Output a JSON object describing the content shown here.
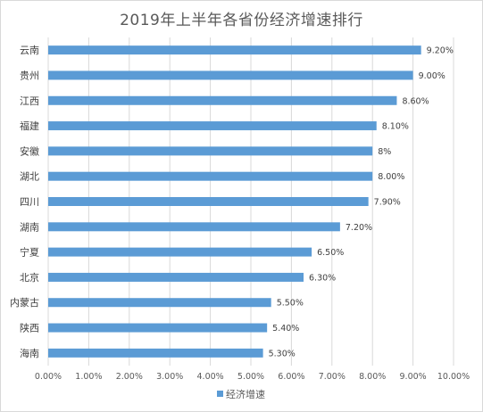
{
  "chart_data": {
    "type": "bar",
    "orientation": "horizontal",
    "title": "2019年上半年各省份经济增速排行",
    "categories": [
      "云南",
      "贵州",
      "江西",
      "福建",
      "安徽",
      "湖北",
      "四川",
      "湖南",
      "宁夏",
      "北京",
      "内蒙古",
      "陕西",
      "海南"
    ],
    "series": [
      {
        "name": "经济增速",
        "values": [
          9.2,
          9.0,
          8.6,
          8.1,
          8.0,
          8.0,
          7.9,
          7.2,
          6.5,
          6.3,
          5.5,
          5.4,
          5.3
        ],
        "labels": [
          "9.20%",
          "9.00%",
          "8.60%",
          "8.10%",
          "8%",
          "8.00%",
          "7.90%",
          "7.20%",
          "6.50%",
          "6.30%",
          "5.50%",
          "5.40%",
          "5.30%"
        ],
        "color": "#5b9bd5"
      }
    ],
    "x_ticks": [
      "0.00%",
      "1.00%",
      "2.00%",
      "3.00%",
      "4.00%",
      "5.00%",
      "6.00%",
      "7.00%",
      "8.00%",
      "9.00%",
      "10.00%"
    ],
    "xlim": [
      0,
      10
    ],
    "grid": "vertical",
    "legend": "bottom",
    "gridline_color": "#d9d9d9"
  }
}
